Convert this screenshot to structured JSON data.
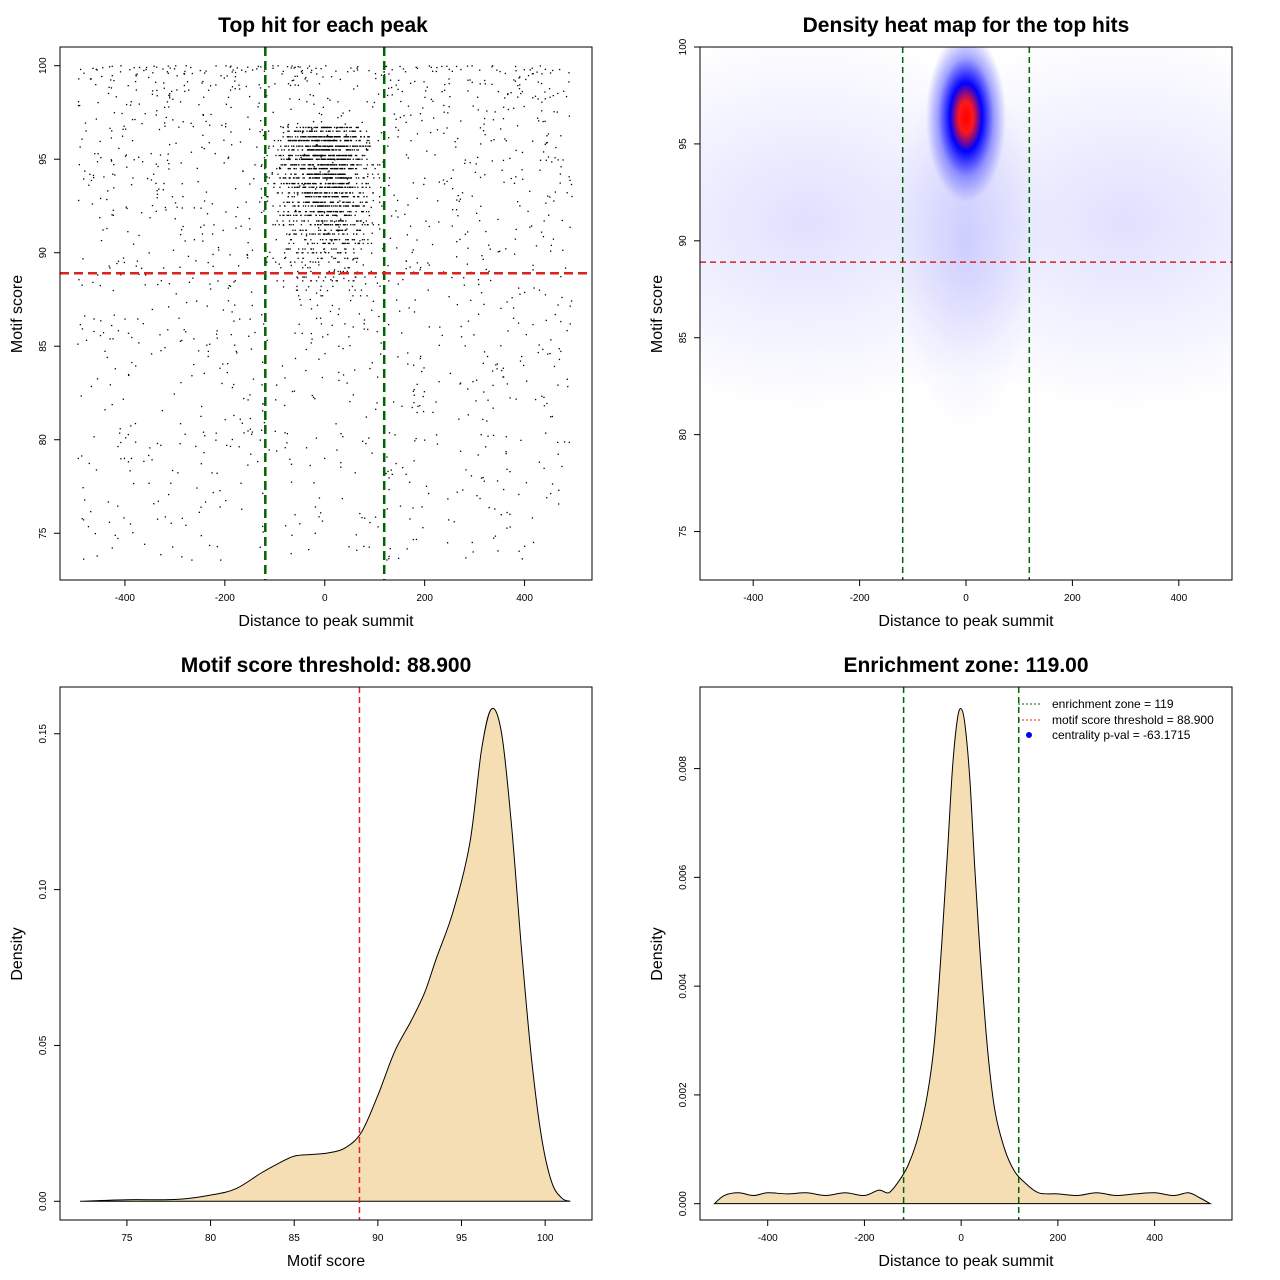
{
  "chart_data": [
    {
      "type": "scatter",
      "title": "Top hit for each peak",
      "xlabel": "Distance to peak summit",
      "ylabel": "Motif score",
      "xlim": [
        -530,
        535
      ],
      "ylim": [
        72.5,
        101
      ],
      "xticks": [
        "-400",
        "-200",
        "0",
        "200",
        "400"
      ],
      "yticks": [
        "75",
        "80",
        "85",
        "90",
        "95",
        "100"
      ],
      "hlines": [
        {
          "y": 88.9,
          "color": "#dd2222"
        }
      ],
      "vlines": [
        {
          "x": -119,
          "color": "#006400"
        },
        {
          "x": 119,
          "color": "#006400"
        }
      ],
      "point_color": "#000000",
      "grid": false
    },
    {
      "type": "heatmap",
      "title": "Density heat map for the top hits",
      "xlabel": "Distance to peak summit",
      "ylabel": "Motif score",
      "xlim": [
        -500,
        500
      ],
      "ylim": [
        72.5,
        100
      ],
      "xticks": [
        "-400",
        "-200",
        "0",
        "200",
        "400"
      ],
      "yticks": [
        "75",
        "80",
        "85",
        "90",
        "95",
        "100"
      ],
      "peak": {
        "x": 0,
        "y": 97
      },
      "colors": [
        "#ffffff",
        "#0000ff",
        "#ff0000"
      ],
      "hlines": [
        {
          "y": 88.9,
          "color": "#dd2222"
        }
      ],
      "vlines": [
        {
          "x": -119,
          "color": "#006400"
        },
        {
          "x": 119,
          "color": "#006400"
        }
      ]
    },
    {
      "type": "area",
      "title": "Motif score threshold: 88.900",
      "xlabel": "Motif score",
      "ylabel": "Density",
      "xlim": [
        71,
        102.8
      ],
      "ylim": [
        -0.006,
        0.165
      ],
      "xticks": [
        "75",
        "80",
        "85",
        "90",
        "95",
        "100"
      ],
      "yticks": [
        "0.00",
        "0.05",
        "0.10",
        "0.15"
      ],
      "x": [
        72.2,
        75,
        78,
        80,
        81.5,
        83,
        84,
        85,
        86,
        87,
        88,
        89,
        90,
        91,
        92,
        92.8,
        93.5,
        94.5,
        95.5,
        96.2,
        96.8,
        97.4,
        98,
        98.6,
        99.2,
        99.8,
        100.4,
        101,
        101.5
      ],
      "y": [
        0,
        0.0005,
        0.0006,
        0.002,
        0.004,
        0.009,
        0.012,
        0.0145,
        0.015,
        0.0155,
        0.017,
        0.022,
        0.034,
        0.048,
        0.058,
        0.067,
        0.078,
        0.093,
        0.115,
        0.145,
        0.158,
        0.15,
        0.12,
        0.08,
        0.045,
        0.02,
        0.006,
        0.001,
        0
      ],
      "fill": "#f5deb3",
      "vlines": [
        {
          "x": 88.9,
          "color": "#dd2222"
        }
      ]
    },
    {
      "type": "area",
      "title": "Enrichment zone: 119.00",
      "xlabel": "Distance to peak summit",
      "ylabel": "Density",
      "xlim": [
        -540,
        560
      ],
      "ylim": [
        -0.0003,
        0.0095
      ],
      "xticks": [
        "-400",
        "-200",
        "0",
        "200",
        "400"
      ],
      "yticks": [
        "0.000",
        "0.002",
        "0.004",
        "0.006",
        "0.008"
      ],
      "x": [
        -510,
        -490,
        -460,
        -430,
        -400,
        -360,
        -320,
        -280,
        -240,
        -200,
        -170,
        -150,
        -130,
        -110,
        -90,
        -70,
        -55,
        -40,
        -28,
        -18,
        -8,
        0,
        8,
        18,
        28,
        40,
        55,
        70,
        90,
        110,
        130,
        160,
        200,
        240,
        280,
        320,
        360,
        400,
        440,
        470,
        495,
        515
      ],
      "y": [
        0,
        0.00015,
        0.0002,
        0.00015,
        0.0002,
        0.00018,
        0.0002,
        0.00015,
        0.0002,
        0.00015,
        0.00025,
        0.0002,
        0.0004,
        0.0007,
        0.0012,
        0.002,
        0.003,
        0.0048,
        0.0065,
        0.008,
        0.0089,
        0.0091,
        0.0088,
        0.0078,
        0.0062,
        0.0045,
        0.0028,
        0.0017,
        0.001,
        0.0006,
        0.0004,
        0.0002,
        0.00018,
        0.00015,
        0.0002,
        0.00015,
        0.00018,
        0.0002,
        0.00015,
        0.0002,
        0.0001,
        0
      ],
      "fill": "#f5deb3",
      "vlines": [
        {
          "x": -119,
          "color": "#006400"
        },
        {
          "x": 119,
          "color": "#006400"
        }
      ],
      "legend": {
        "position": "top-right",
        "entries": [
          {
            "label": "enrichment zone = 119",
            "color": "#006400",
            "style": "dotted-line"
          },
          {
            "label": "motif score threshold = 88.900",
            "color": "#dd2222",
            "style": "dotted-line"
          },
          {
            "label": "centrality p-val = -63.1715",
            "color": "#0000ff",
            "style": "point"
          }
        ]
      }
    }
  ]
}
